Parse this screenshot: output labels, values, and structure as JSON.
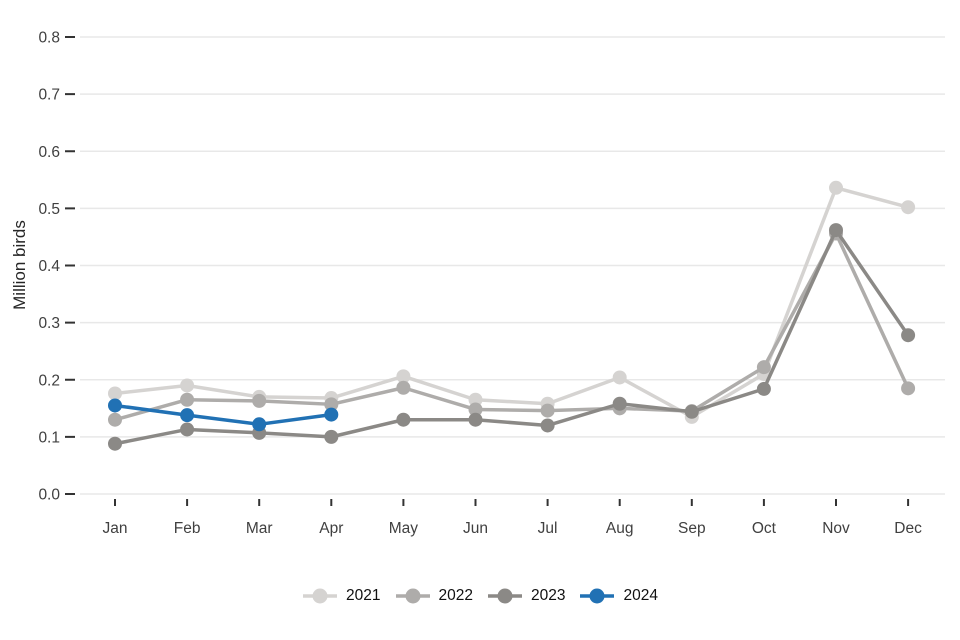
{
  "chart_data": {
    "type": "line",
    "title": "",
    "xlabel": "",
    "ylabel": "Million birds",
    "x_categories": [
      "Jan",
      "Feb",
      "Mar",
      "Apr",
      "May",
      "Jun",
      "Jul",
      "Aug",
      "Sep",
      "Oct",
      "Nov",
      "Dec"
    ],
    "y_ticks": [
      "0.0",
      "0.1",
      "0.2",
      "0.3",
      "0.4",
      "0.5",
      "0.6",
      "0.7",
      "0.8"
    ],
    "ylim": [
      0.0,
      0.83
    ],
    "grid": "horizontal-major-only",
    "legend_position": "bottom-center",
    "colors": {
      "background": "#ffffff",
      "gridline": "#e8e8e8",
      "tick_mark": "#333333",
      "tick_label": "#404040",
      "axis_title": "#262626",
      "legend_label": "#111111"
    },
    "series": [
      {
        "name": "2021",
        "color": "#d5d3d1",
        "values": [
          0.176,
          0.19,
          0.17,
          0.168,
          0.206,
          0.165,
          0.158,
          0.204,
          0.135,
          0.21,
          0.536,
          0.502
        ]
      },
      {
        "name": "2022",
        "color": "#aeacaa",
        "values": [
          0.13,
          0.165,
          0.163,
          0.157,
          0.186,
          0.148,
          0.146,
          0.15,
          0.145,
          0.222,
          0.456,
          0.185
        ]
      },
      {
        "name": "2023",
        "color": "#8b8986",
        "values": [
          0.088,
          0.113,
          0.107,
          0.1,
          0.13,
          0.13,
          0.12,
          0.158,
          0.144,
          0.184,
          0.462,
          0.278
        ]
      },
      {
        "name": "2024",
        "color": "#2171b4",
        "values": [
          0.155,
          0.138,
          0.122,
          0.139,
          null,
          null,
          null,
          null,
          null,
          null,
          null,
          null
        ]
      }
    ]
  }
}
